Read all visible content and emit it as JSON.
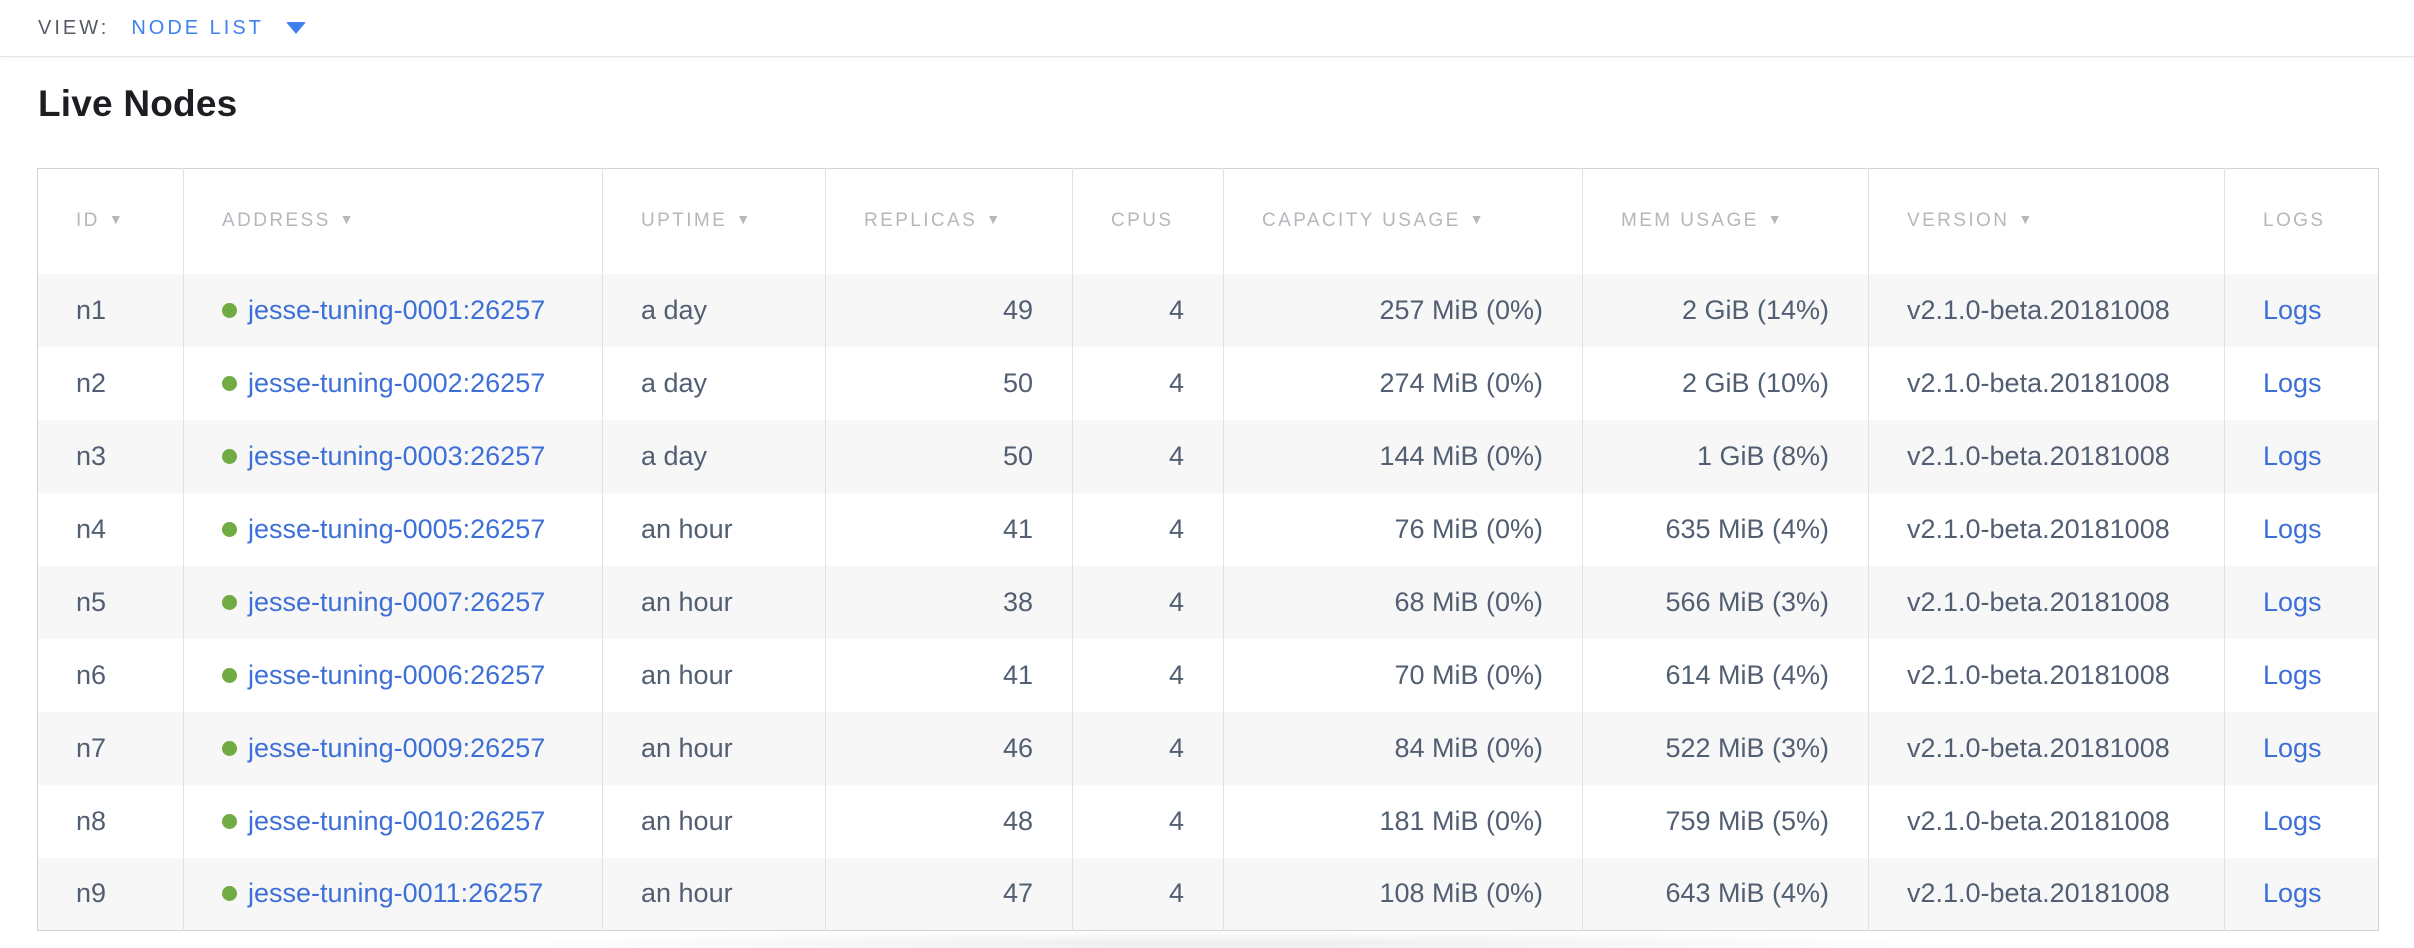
{
  "viewbar": {
    "label": "VIEW:",
    "selected_view": "NODE LIST"
  },
  "page": {
    "title": "Live Nodes"
  },
  "colors": {
    "link_blue": "#3d6fd9",
    "accent_blue": "#3d82ed",
    "status_green": "#71ab43",
    "header_gray": "#b5b7bc",
    "cell_text": "#525e72",
    "row_alt_bg": "#f7f7f7"
  },
  "icons": {
    "sort_arrow": "▼",
    "status_dot": "live-status-dot",
    "caret": "chevron-down"
  },
  "table": {
    "columns": [
      {
        "key": "id",
        "label": "ID",
        "sorted": true
      },
      {
        "key": "address",
        "label": "ADDRESS",
        "sorted": true
      },
      {
        "key": "uptime",
        "label": "UPTIME",
        "sorted": true
      },
      {
        "key": "replicas",
        "label": "REPLICAS",
        "sorted": true
      },
      {
        "key": "cpus",
        "label": "CPUS",
        "sorted": false
      },
      {
        "key": "capacity",
        "label": "CAPACITY USAGE",
        "sorted": true
      },
      {
        "key": "mem",
        "label": "MEM USAGE",
        "sorted": true
      },
      {
        "key": "version",
        "label": "VERSION",
        "sorted": true
      },
      {
        "key": "logs",
        "label": "LOGS",
        "sorted": false
      }
    ],
    "numeric_columns": [
      "replicas",
      "cpus",
      "capacity",
      "mem"
    ],
    "rows": [
      {
        "id": "n1",
        "address": "jesse-tuning-0001:26257",
        "uptime": "a day",
        "replicas": "49",
        "cpus": "4",
        "capacity": "257 MiB (0%)",
        "mem": "2 GiB (14%)",
        "version": "v2.1.0-beta.20181008",
        "logs": "Logs"
      },
      {
        "id": "n2",
        "address": "jesse-tuning-0002:26257",
        "uptime": "a day",
        "replicas": "50",
        "cpus": "4",
        "capacity": "274 MiB (0%)",
        "mem": "2 GiB (10%)",
        "version": "v2.1.0-beta.20181008",
        "logs": "Logs"
      },
      {
        "id": "n3",
        "address": "jesse-tuning-0003:26257",
        "uptime": "a day",
        "replicas": "50",
        "cpus": "4",
        "capacity": "144 MiB (0%)",
        "mem": "1 GiB (8%)",
        "version": "v2.1.0-beta.20181008",
        "logs": "Logs"
      },
      {
        "id": "n4",
        "address": "jesse-tuning-0005:26257",
        "uptime": "an hour",
        "replicas": "41",
        "cpus": "4",
        "capacity": "76 MiB (0%)",
        "mem": "635 MiB (4%)",
        "version": "v2.1.0-beta.20181008",
        "logs": "Logs"
      },
      {
        "id": "n5",
        "address": "jesse-tuning-0007:26257",
        "uptime": "an hour",
        "replicas": "38",
        "cpus": "4",
        "capacity": "68 MiB (0%)",
        "mem": "566 MiB (3%)",
        "version": "v2.1.0-beta.20181008",
        "logs": "Logs"
      },
      {
        "id": "n6",
        "address": "jesse-tuning-0006:26257",
        "uptime": "an hour",
        "replicas": "41",
        "cpus": "4",
        "capacity": "70 MiB (0%)",
        "mem": "614 MiB (4%)",
        "version": "v2.1.0-beta.20181008",
        "logs": "Logs"
      },
      {
        "id": "n7",
        "address": "jesse-tuning-0009:26257",
        "uptime": "an hour",
        "replicas": "46",
        "cpus": "4",
        "capacity": "84 MiB (0%)",
        "mem": "522 MiB (3%)",
        "version": "v2.1.0-beta.20181008",
        "logs": "Logs"
      },
      {
        "id": "n8",
        "address": "jesse-tuning-0010:26257",
        "uptime": "an hour",
        "replicas": "48",
        "cpus": "4",
        "capacity": "181 MiB (0%)",
        "mem": "759 MiB (5%)",
        "version": "v2.1.0-beta.20181008",
        "logs": "Logs"
      },
      {
        "id": "n9",
        "address": "jesse-tuning-0011:26257",
        "uptime": "an hour",
        "replicas": "47",
        "cpus": "4",
        "capacity": "108 MiB (0%)",
        "mem": "643 MiB (4%)",
        "version": "v2.1.0-beta.20181008",
        "logs": "Logs"
      }
    ]
  }
}
